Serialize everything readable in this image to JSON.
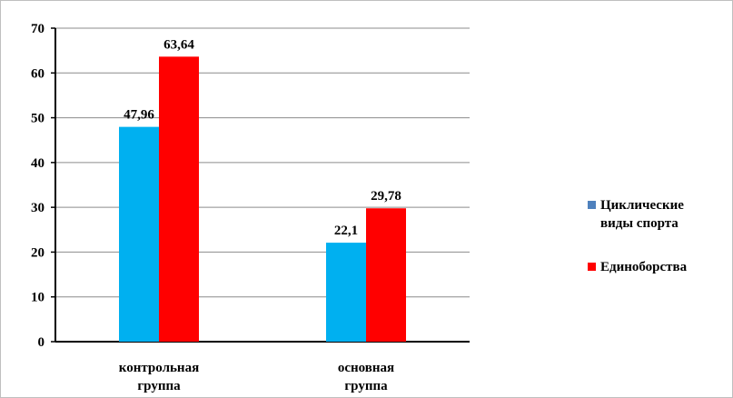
{
  "chart_data": {
    "type": "bar",
    "categories": [
      "контрольная группа",
      "основная группа"
    ],
    "category_lines": [
      [
        "контрольная",
        "группа"
      ],
      [
        "основная",
        "группа"
      ]
    ],
    "series": [
      {
        "name": "Циклические виды спорта",
        "values": [
          47.96,
          22.1
        ],
        "labels": [
          "47,96",
          "22,1"
        ],
        "color": "#00b0f0",
        "legend_color": "#4f81bd"
      },
      {
        "name": "Единоборства",
        "values": [
          63.64,
          29.78
        ],
        "labels": [
          "63,64",
          "29,78"
        ],
        "color": "#ff0000",
        "legend_color": "#ff0000"
      }
    ],
    "ylim": [
      0,
      70
    ],
    "yticks": [
      0,
      10,
      20,
      30,
      40,
      50,
      60,
      70
    ],
    "grid": true,
    "legend_position": "right",
    "legend": [
      {
        "lines": [
          "Циклические",
          "виды спорта"
        ]
      },
      {
        "lines": [
          "Единоборства"
        ]
      }
    ]
  }
}
